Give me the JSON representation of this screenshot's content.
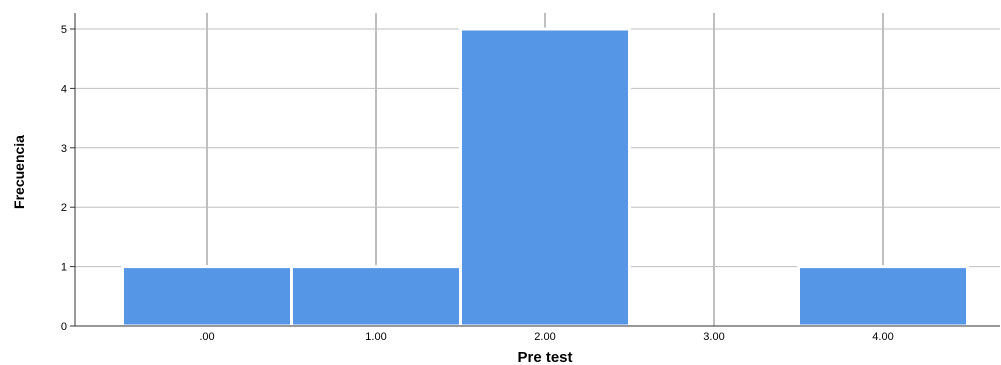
{
  "chart_data": {
    "type": "bar",
    "categories": [
      ".00",
      "1.00",
      "2.00",
      "3.00",
      "4.00"
    ],
    "values": [
      1,
      1,
      5,
      0,
      1
    ],
    "xlabel": "Pre test",
    "ylabel": "Frecuencia",
    "yticks": [
      "0",
      "1",
      "2",
      "3",
      "4",
      "5"
    ],
    "ylim": [
      0,
      5
    ],
    "grid": true,
    "colors": {
      "bar": "#5596e6",
      "bar_outline": "#ffffff",
      "grid": "#bfbfbf",
      "axis": "#333333"
    }
  }
}
